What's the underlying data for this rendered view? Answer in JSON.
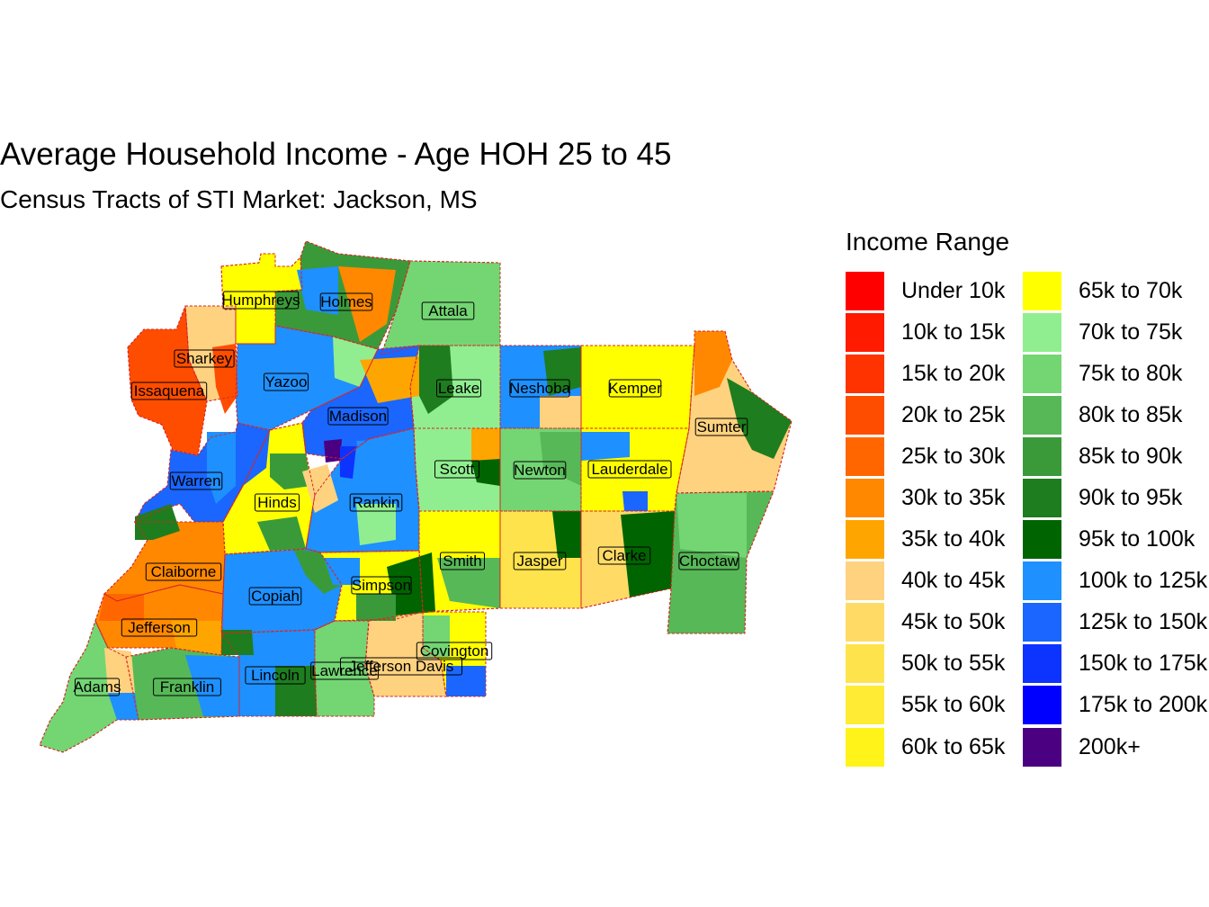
{
  "title": "Average Household Income - Age HOH 25 to 45",
  "subtitle": "Census Tracts of STI Market: Jackson, MS",
  "legend": {
    "title": "Income Range",
    "items": [
      {
        "label": "Under 10k",
        "color": "#FF0000"
      },
      {
        "label": "10k to 15k",
        "color": "#FF1A00"
      },
      {
        "label": "15k to 20k",
        "color": "#FF3300"
      },
      {
        "label": "20k to 25k",
        "color": "#FF4D00"
      },
      {
        "label": "25k to 30k",
        "color": "#FF6600"
      },
      {
        "label": "30k to 35k",
        "color": "#FF8800"
      },
      {
        "label": "35k to 40k",
        "color": "#FFA500"
      },
      {
        "label": "40k to 45k",
        "color": "#FFD27F"
      },
      {
        "label": "45k to 50k",
        "color": "#FFDB66"
      },
      {
        "label": "50k to 55k",
        "color": "#FFE34D"
      },
      {
        "label": "55k to 60k",
        "color": "#FFEB33"
      },
      {
        "label": "60k to 65k",
        "color": "#FFF31A"
      },
      {
        "label": "65k to 70k",
        "color": "#FFFF00"
      },
      {
        "label": "70k to 75k",
        "color": "#90EE90"
      },
      {
        "label": "75k to 80k",
        "color": "#73D673"
      },
      {
        "label": "80k to 85k",
        "color": "#57B857"
      },
      {
        "label": "85k to 90k",
        "color": "#3A9A3A"
      },
      {
        "label": "90k to 95k",
        "color": "#1E7D1E"
      },
      {
        "label": "95k to 100k",
        "color": "#006400"
      },
      {
        "label": "100k to 125k",
        "color": "#1E90FF"
      },
      {
        "label": "125k to 150k",
        "color": "#1A66FF"
      },
      {
        "label": "150k to 175k",
        "color": "#0D33FF"
      },
      {
        "label": "175k to 200k",
        "color": "#0000FF"
      },
      {
        "label": "200k+",
        "color": "#4B0082"
      }
    ]
  },
  "map": {
    "county_border_color": "#D62728",
    "counties": [
      {
        "name": "Humphreys",
        "fill": "#FFFF00"
      },
      {
        "name": "Holmes",
        "fill": "#3A9A3A"
      },
      {
        "name": "Attala",
        "fill": "#73D673"
      },
      {
        "name": "Sharkey",
        "fill": "#FFD27F"
      },
      {
        "name": "Issaquena",
        "fill": "#FF4D00"
      },
      {
        "name": "Yazoo",
        "fill": "#1E90FF"
      },
      {
        "name": "Leake",
        "fill": "#90EE90"
      },
      {
        "name": "Neshoba",
        "fill": "#1E90FF"
      },
      {
        "name": "Kemper",
        "fill": "#FFFF00"
      },
      {
        "name": "Madison",
        "fill": "#1A66FF"
      },
      {
        "name": "Sumter",
        "fill": "#FFD27F"
      },
      {
        "name": "Scott",
        "fill": "#90EE90"
      },
      {
        "name": "Newton",
        "fill": "#73D673"
      },
      {
        "name": "Lauderdale",
        "fill": "#FFFF00"
      },
      {
        "name": "Warren",
        "fill": "#1A66FF"
      },
      {
        "name": "Hinds",
        "fill": "#FFFF00"
      },
      {
        "name": "Rankin",
        "fill": "#1E90FF"
      },
      {
        "name": "Smith",
        "fill": "#FFFF00"
      },
      {
        "name": "Jasper",
        "fill": "#FFE34D"
      },
      {
        "name": "Clarke",
        "fill": "#FFDB66"
      },
      {
        "name": "Choctaw",
        "fill": "#57B857"
      },
      {
        "name": "Claiborne",
        "fill": "#FF8800"
      },
      {
        "name": "Copiah",
        "fill": "#1E90FF"
      },
      {
        "name": "Simpson",
        "fill": "#FFFF00"
      },
      {
        "name": "Jefferson",
        "fill": "#FF8800"
      },
      {
        "name": "Covington",
        "fill": "#FFFF00"
      },
      {
        "name": "Jefferson Davis",
        "fill": "#FFD27F"
      },
      {
        "name": "Lawrence",
        "fill": "#73D673"
      },
      {
        "name": "Lincoln",
        "fill": "#1E90FF"
      },
      {
        "name": "Adams",
        "fill": "#73D673"
      },
      {
        "name": "Franklin",
        "fill": "#57B857"
      }
    ]
  }
}
